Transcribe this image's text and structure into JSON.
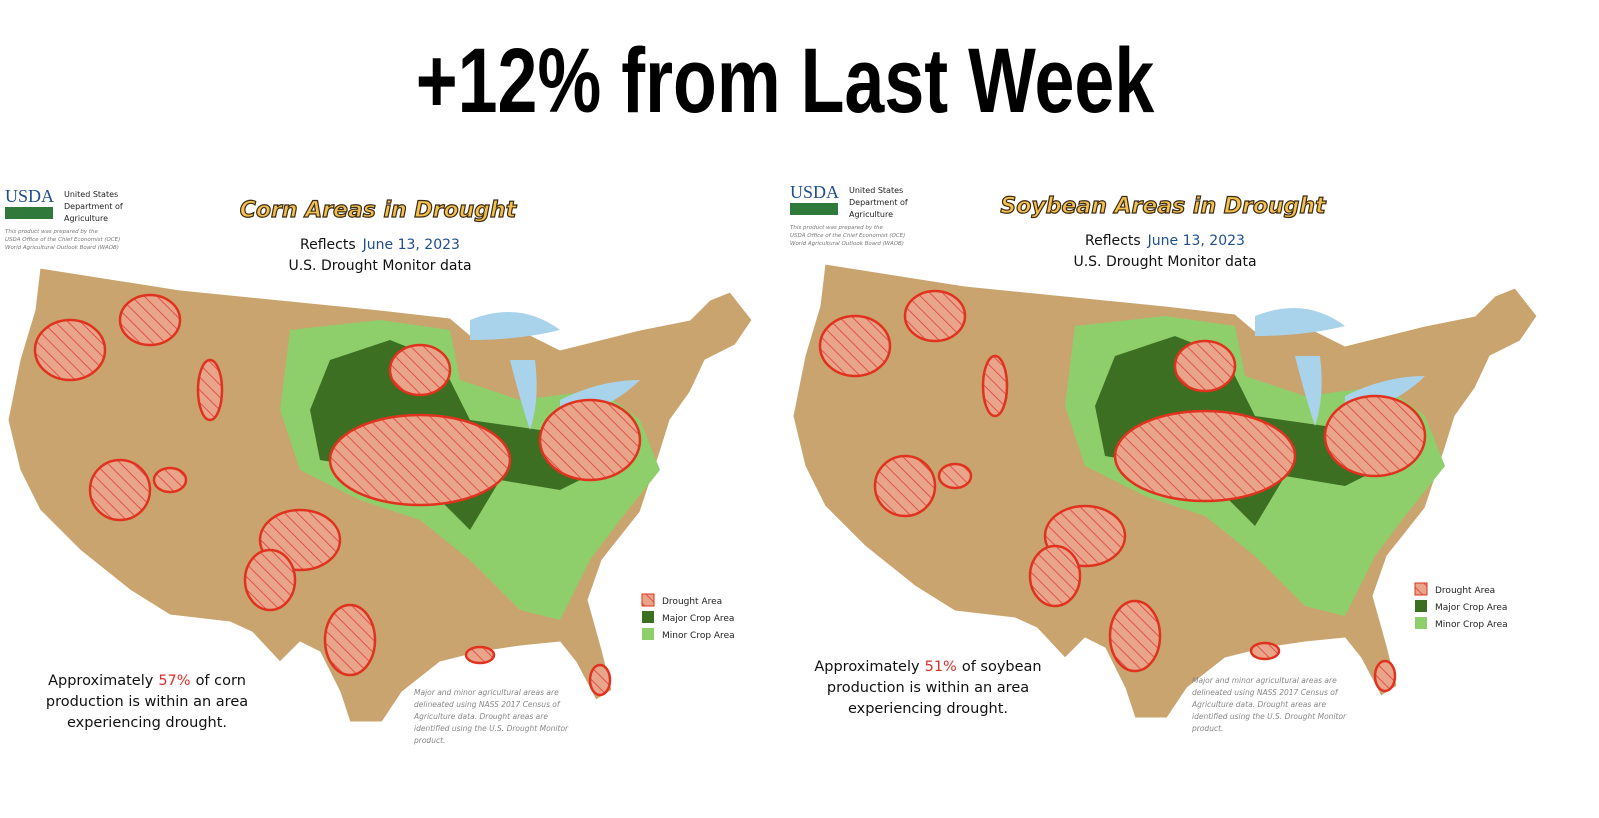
{
  "header": {
    "title": "+12% from Last Week"
  },
  "panels": [
    {
      "agency": {
        "logo": "USDA",
        "name": [
          "United States",
          "Department of",
          "Agriculture"
        ],
        "credit": [
          "This product was prepared by the",
          "USDA Office of the Chief Economist (OCE)",
          "World Agricultural Outlook Board (WAOB)"
        ]
      },
      "title": "Corn Areas in Drought",
      "reflects": {
        "label": "Reflects",
        "date": "June 13, 2023"
      },
      "source": "U.S. Drought Monitor data",
      "legend": [
        "Drought Area",
        "Major Crop Area",
        "Minor Crop Area"
      ],
      "summary": [
        [
          "Approximately",
          "57%",
          "of corn"
        ],
        [
          "production is within an area"
        ],
        [
          "experiencing drought."
        ]
      ],
      "note": [
        "Major and minor agricultural areas are",
        "delineated using NASS 2017 Census of",
        "Agriculture data.  Drought areas are",
        "identified using the U.S. Drought Monitor",
        "product."
      ]
    },
    {
      "agency": {
        "logo": "USDA",
        "name": [
          "United States",
          "Department of",
          "Agriculture"
        ],
        "credit": [
          "This product was prepared by the",
          "USDA Office of the Chief Economist (OCE)",
          "World Agricultural Outlook Board (WAOB)"
        ]
      },
      "title": "Soybean Areas in Drought",
      "reflects": {
        "label": "Reflects",
        "date": "June 13, 2023"
      },
      "source": "U.S. Drought Monitor data",
      "legend": [
        "Drought Area",
        "Major Crop Area",
        "Minor Crop Area"
      ],
      "summary": [
        [
          "Approximately",
          "51%",
          "of soybean"
        ],
        [
          "production is within an area"
        ],
        [
          "experiencing drought."
        ]
      ],
      "note": [
        "Major and minor agricultural areas are",
        "delineated using NASS 2017 Census of",
        "Agriculture data.  Drought areas are",
        "identified using the U.S. Drought Monitor",
        "product."
      ]
    }
  ]
}
